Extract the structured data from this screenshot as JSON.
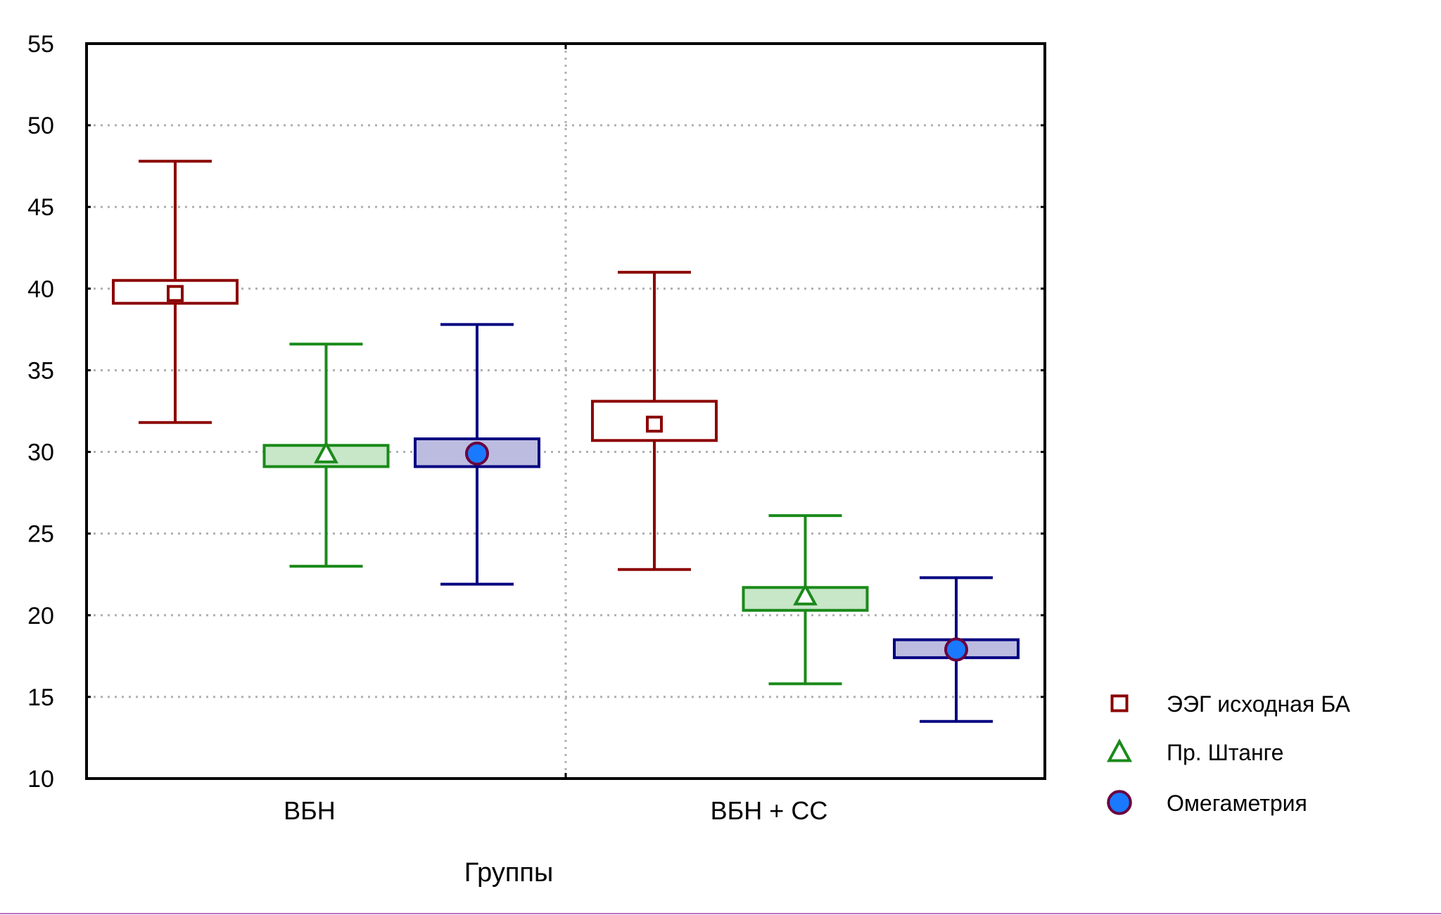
{
  "chart_data": {
    "type": "box",
    "xlabel": "Группы",
    "ylabel": "",
    "ylim": [
      10,
      55
    ],
    "yticks": [
      10,
      15,
      20,
      25,
      30,
      35,
      40,
      45,
      50,
      55
    ],
    "grid": true,
    "legend_position": "right",
    "categories": [
      "ВБН",
      "ВБН + СС"
    ],
    "series": [
      {
        "name": "ЭЭГ исходная БА",
        "marker": "square-icon",
        "color": "#8b0000",
        "fill": "#ffffff",
        "mean": [
          39.7,
          31.7
        ],
        "box_low": [
          39.1,
          30.7
        ],
        "box_high": [
          40.5,
          33.1
        ],
        "whisker_low": [
          31.8,
          22.8
        ],
        "whisker_high": [
          47.8,
          41.0
        ]
      },
      {
        "name": "Пр. Штанге",
        "marker": "triangle-icon",
        "color": "#1a8a1a",
        "fill": "#c8e6c8",
        "mean": [
          29.9,
          21.2
        ],
        "box_low": [
          29.1,
          20.3
        ],
        "box_high": [
          30.4,
          21.7
        ],
        "whisker_low": [
          23.0,
          15.8
        ],
        "whisker_high": [
          36.6,
          26.1
        ]
      },
      {
        "name": "Омегаметрия",
        "marker": "circle-icon",
        "color": "#000080",
        "fill": "#bcbce0",
        "point_fill": "#1a7aff",
        "point_stroke": "#6a0040",
        "mean": [
          29.9,
          17.9
        ],
        "box_low": [
          29.1,
          17.4
        ],
        "box_high": [
          30.8,
          18.5
        ],
        "whisker_low": [
          21.9,
          13.5
        ],
        "whisker_high": [
          37.8,
          22.3
        ]
      }
    ]
  }
}
